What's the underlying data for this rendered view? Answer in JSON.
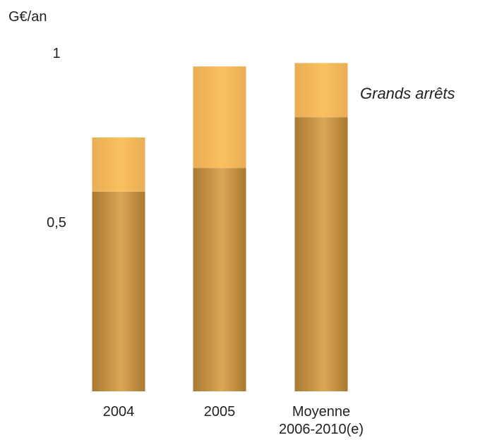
{
  "chart_data": {
    "type": "bar",
    "stacked": true,
    "ylabel": "G€/an",
    "ylim": [
      0,
      1
    ],
    "yticks": [
      {
        "value": 0.5,
        "label": "0,5"
      },
      {
        "value": 1,
        "label": "1"
      }
    ],
    "categories": [
      [
        "2004"
      ],
      [
        "2005"
      ],
      [
        "Moyenne",
        "2006-2010(e)"
      ]
    ],
    "series": [
      {
        "values": [
          0.59,
          0.66,
          0.81
        ],
        "color": "#c0913c"
      },
      {
        "name": "Grands arrêts",
        "values": [
          0.16,
          0.3,
          0.16
        ],
        "color": "#f8bc58"
      }
    ],
    "annotation": "Grands arrêts",
    "grid": false
  }
}
